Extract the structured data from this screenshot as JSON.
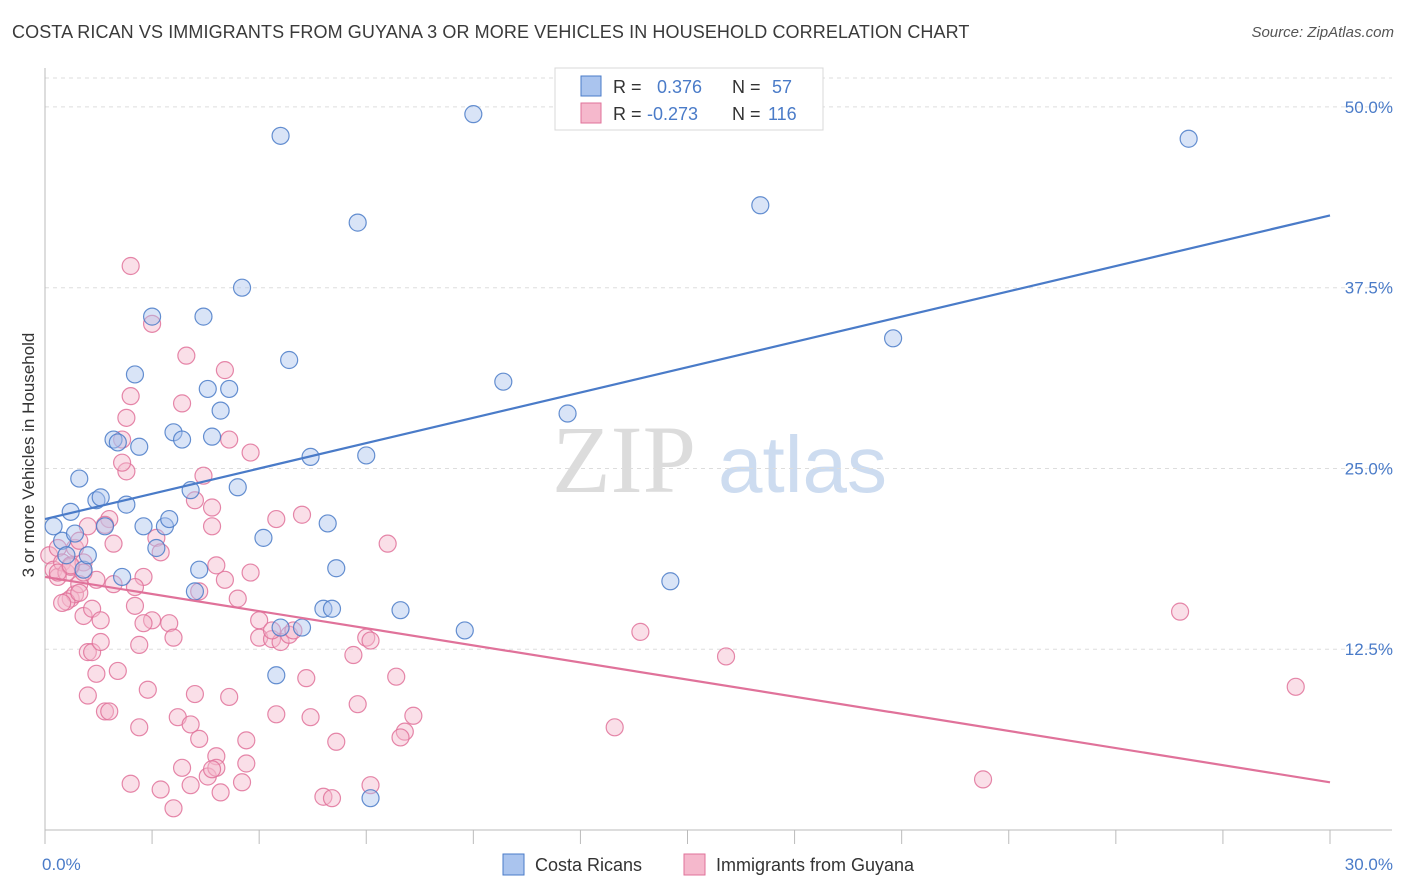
{
  "title": "COSTA RICAN VS IMMIGRANTS FROM GUYANA 3 OR MORE VEHICLES IN HOUSEHOLD CORRELATION CHART",
  "source": "Source: ZipAtlas.com",
  "watermark": {
    "zip": "ZIP",
    "atlas": "atlas"
  },
  "legend_top": [
    {
      "r_label": "R =",
      "r_value": "0.376",
      "n_label": "N =",
      "n_value": "57",
      "color": "#4a7bc8",
      "fill": "#aac4ee"
    },
    {
      "r_label": "R =",
      "r_value": "-0.273",
      "n_label": "N =",
      "n_value": "116",
      "color": "#e0729a",
      "fill": "#f5b8cc"
    }
  ],
  "chart_data": {
    "type": "scatter",
    "title": "COSTA RICAN VS IMMIGRANTS FROM GUYANA 3 OR MORE VEHICLES IN HOUSEHOLD CORRELATION CHART",
    "xlabel": "",
    "ylabel": "3 or more Vehicles in Household",
    "xlim": [
      0,
      30
    ],
    "ylim": [
      0,
      52
    ],
    "x_tick_labels": [
      "0.0%",
      "30.0%"
    ],
    "y_ticks": [
      12.5,
      25.0,
      37.5,
      50.0
    ],
    "y_tick_labels": [
      "12.5%",
      "25.0%",
      "37.5%",
      "50.0%"
    ],
    "grid": true,
    "series": [
      {
        "name": "Costa Ricans",
        "color": "#4a7bc8",
        "fill": "#aac4ee",
        "trend": {
          "x": [
            0,
            30
          ],
          "y": [
            21.5,
            42.5
          ]
        },
        "points": [
          [
            0.2,
            21
          ],
          [
            0.4,
            20
          ],
          [
            0.5,
            19
          ],
          [
            0.6,
            22
          ],
          [
            0.7,
            20.5
          ],
          [
            0.8,
            24.3
          ],
          [
            0.9,
            18
          ],
          [
            1.0,
            19
          ],
          [
            1.2,
            22.8
          ],
          [
            1.3,
            23
          ],
          [
            1.4,
            21
          ],
          [
            1.6,
            27
          ],
          [
            1.7,
            26.8
          ],
          [
            1.8,
            17.5
          ],
          [
            1.9,
            22.5
          ],
          [
            2.1,
            31.5
          ],
          [
            2.2,
            26.5
          ],
          [
            2.3,
            21
          ],
          [
            2.5,
            35.5
          ],
          [
            2.6,
            19.5
          ],
          [
            2.8,
            21
          ],
          [
            2.9,
            21.5
          ],
          [
            3.0,
            27.5
          ],
          [
            3.2,
            27
          ],
          [
            3.4,
            23.5
          ],
          [
            3.5,
            16.5
          ],
          [
            3.6,
            18
          ],
          [
            3.7,
            35.5
          ],
          [
            3.8,
            30.5
          ],
          [
            3.9,
            27.2
          ],
          [
            4.1,
            29
          ],
          [
            4.3,
            30.5
          ],
          [
            4.5,
            23.7
          ],
          [
            4.6,
            37.5
          ],
          [
            5.1,
            20.2
          ],
          [
            5.5,
            48
          ],
          [
            5.7,
            32.5
          ],
          [
            5.5,
            14
          ],
          [
            6.0,
            14
          ],
          [
            5.4,
            10.7
          ],
          [
            6.2,
            25.8
          ],
          [
            6.5,
            15.3
          ],
          [
            6.7,
            15.3
          ],
          [
            6.6,
            21.2
          ],
          [
            6.8,
            18.1
          ],
          [
            7.3,
            42
          ],
          [
            7.5,
            25.9
          ],
          [
            7.6,
            2.2
          ],
          [
            8.3,
            15.2
          ],
          [
            9.8,
            13.8
          ],
          [
            10.0,
            49.5
          ],
          [
            10.7,
            31
          ],
          [
            12.2,
            28.8
          ],
          [
            14.6,
            17.2
          ],
          [
            16.7,
            43.2
          ],
          [
            19.8,
            34
          ],
          [
            26.7,
            47.8
          ]
        ]
      },
      {
        "name": "Immigrants from Guyana",
        "color": "#e0729a",
        "fill": "#f5b8cc",
        "trend": {
          "x": [
            0,
            30
          ],
          "y": [
            17.5,
            3.3
          ]
        },
        "points": [
          [
            0.1,
            19
          ],
          [
            0.2,
            18
          ],
          [
            0.3,
            17.5
          ],
          [
            0.3,
            19.5
          ],
          [
            0.4,
            18.5
          ],
          [
            0.5,
            17.8
          ],
          [
            0.6,
            18.2
          ],
          [
            0.6,
            16
          ],
          [
            0.7,
            19.5
          ],
          [
            0.7,
            16.3
          ],
          [
            0.8,
            20
          ],
          [
            0.8,
            17
          ],
          [
            0.9,
            18.5
          ],
          [
            0.9,
            14.8
          ],
          [
            1.0,
            12.3
          ],
          [
            1.0,
            9.3
          ],
          [
            1.1,
            12.3
          ],
          [
            1.1,
            15.3
          ],
          [
            1.2,
            10.8
          ],
          [
            1.3,
            13
          ],
          [
            1.3,
            14.5
          ],
          [
            1.4,
            8.2
          ],
          [
            1.5,
            8.2
          ],
          [
            1.5,
            21.5
          ],
          [
            1.6,
            19.8
          ],
          [
            1.6,
            17
          ],
          [
            1.7,
            11
          ],
          [
            1.8,
            27
          ],
          [
            1.9,
            24.8
          ],
          [
            1.9,
            28.5
          ],
          [
            2.0,
            30
          ],
          [
            2.0,
            39
          ],
          [
            2.1,
            15.5
          ],
          [
            2.2,
            12.8
          ],
          [
            2.2,
            7.1
          ],
          [
            2.3,
            17.5
          ],
          [
            2.4,
            9.7
          ],
          [
            2.5,
            14.5
          ],
          [
            2.6,
            20.2
          ],
          [
            2.7,
            19.2
          ],
          [
            2.7,
            2.8
          ],
          [
            2.9,
            14.3
          ],
          [
            3.0,
            1.5
          ],
          [
            3.0,
            13.3
          ],
          [
            3.1,
            7.8
          ],
          [
            3.2,
            4.3
          ],
          [
            3.2,
            29.5
          ],
          [
            3.3,
            32.8
          ],
          [
            3.4,
            7.3
          ],
          [
            3.5,
            22.8
          ],
          [
            3.6,
            16.5
          ],
          [
            3.6,
            6.3
          ],
          [
            3.7,
            24.5
          ],
          [
            3.8,
            3.7
          ],
          [
            3.9,
            22.3
          ],
          [
            3.9,
            21
          ],
          [
            4.0,
            5.1
          ],
          [
            4.0,
            4.3
          ],
          [
            4.1,
            2.6
          ],
          [
            4.2,
            31.8
          ],
          [
            4.2,
            17.3
          ],
          [
            4.3,
            27
          ],
          [
            4.3,
            9.2
          ],
          [
            4.5,
            16
          ],
          [
            4.6,
            3.3
          ],
          [
            4.7,
            4.6
          ],
          [
            4.7,
            6.2
          ],
          [
            4.8,
            17.8
          ],
          [
            5.0,
            14.5
          ],
          [
            5.0,
            13.3
          ],
          [
            5.3,
            13.2
          ],
          [
            5.4,
            8
          ],
          [
            5.4,
            21.5
          ],
          [
            5.5,
            13
          ],
          [
            5.7,
            13.5
          ],
          [
            5.8,
            13.8
          ],
          [
            6.0,
            21.8
          ],
          [
            6.1,
            10.5
          ],
          [
            6.2,
            7.8
          ],
          [
            6.5,
            2.3
          ],
          [
            6.7,
            2.2
          ],
          [
            6.8,
            6.1
          ],
          [
            7.2,
            12.1
          ],
          [
            7.3,
            8.7
          ],
          [
            7.5,
            13.3
          ],
          [
            7.6,
            3.1
          ],
          [
            8.0,
            19.8
          ],
          [
            8.2,
            10.6
          ],
          [
            8.4,
            6.8
          ],
          [
            8.6,
            7.9
          ],
          [
            7.6,
            13.1
          ],
          [
            8.3,
            6.4
          ],
          [
            1.4,
            21.1
          ],
          [
            1.8,
            25.4
          ],
          [
            2.1,
            16.8
          ],
          [
            2.3,
            14.3
          ],
          [
            2.5,
            35
          ],
          [
            1.2,
            17.3
          ],
          [
            0.5,
            15.8
          ],
          [
            0.9,
            17.8
          ],
          [
            3.9,
            4.2
          ],
          [
            0.3,
            17.8
          ],
          [
            0.4,
            15.7
          ],
          [
            0.6,
            18.3
          ],
          [
            0.8,
            16.4
          ],
          [
            1.0,
            21
          ],
          [
            2.0,
            3.2
          ],
          [
            3.4,
            3.1
          ],
          [
            3.5,
            9.4
          ],
          [
            4.0,
            18.3
          ],
          [
            4.8,
            26.1
          ],
          [
            5.3,
            13.8
          ],
          [
            13.9,
            13.7
          ],
          [
            15.9,
            12
          ],
          [
            13.3,
            7.1
          ],
          [
            29.2,
            9.9
          ],
          [
            26.5,
            15.1
          ],
          [
            21.9,
            3.5
          ]
        ]
      }
    ]
  }
}
